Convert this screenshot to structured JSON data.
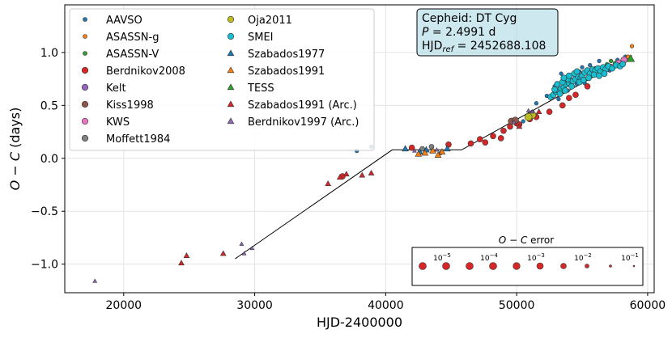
{
  "chart_data": {
    "type": "scatter",
    "title": "",
    "xlabel": "HJD-2400000",
    "ylabel_parts": {
      "o": "O",
      "minus": " − ",
      "c": "C",
      "units": " (days)"
    },
    "xlim": [
      15500,
      60500
    ],
    "ylim": [
      -1.27,
      1.45
    ],
    "xticks": [
      20000,
      30000,
      40000,
      50000,
      60000
    ],
    "xtick_labels": [
      "20000",
      "30000",
      "40000",
      "50000",
      "60000"
    ],
    "yticks": [
      -1.0,
      -0.5,
      0.0,
      0.5,
      1.0
    ],
    "ytick_labels": [
      "−1.0",
      "−0.5",
      "0.0",
      "0.5",
      "1.0"
    ],
    "grid": true,
    "info_box": {
      "line1": "Cepheid: DT Cyg",
      "line2_var": "P",
      "line2_rest": " = 2.4991 d",
      "line3_prefix": "HJD",
      "line3_sub": "ref",
      "line3_rest": " = 2452688.108"
    },
    "fit_line": [
      [
        28500,
        -0.95
      ],
      [
        40500,
        0.08
      ],
      [
        45800,
        0.08
      ],
      [
        58800,
        0.97
      ]
    ],
    "series": [
      {
        "name": "AAVSO",
        "color": "#1f77b4",
        "marker": "circle",
        "r": 2.3,
        "points": [
          [
            37800,
            0.07
          ],
          [
            38900,
            0.11
          ],
          [
            44200,
            0.05
          ],
          [
            50500,
            0.35
          ],
          [
            51200,
            0.44
          ],
          [
            51500,
            0.52
          ],
          [
            52300,
            0.59
          ],
          [
            53200,
            0.56
          ],
          [
            53600,
            0.72
          ],
          [
            54000,
            0.75
          ],
          [
            54400,
            0.79
          ],
          [
            54800,
            0.82
          ],
          [
            55200,
            0.71
          ],
          [
            55600,
            0.88
          ],
          [
            55900,
            0.79
          ],
          [
            56300,
            0.92
          ],
          [
            56800,
            0.87
          ],
          [
            57100,
            0.83
          ],
          [
            57400,
            0.86
          ],
          [
            57700,
            0.93
          ],
          [
            58000,
            0.91
          ],
          [
            58300,
            0.96
          ],
          [
            53900,
            0.64
          ],
          [
            54600,
            0.7
          ],
          [
            55000,
            0.86
          ],
          [
            56000,
            0.85
          ],
          [
            52900,
            0.68
          ],
          [
            53400,
            0.8
          ]
        ]
      },
      {
        "name": "ASASSN-g",
        "color": "#ff7f0e",
        "marker": "circle",
        "r": 2.3,
        "points": [
          [
            58200,
            0.93
          ],
          [
            58500,
            0.96
          ],
          [
            58800,
            1.06
          ]
        ]
      },
      {
        "name": "ASASSN-V",
        "color": "#2ca02c",
        "marker": "circle",
        "r": 2.3,
        "points": [
          [
            56900,
            0.89
          ],
          [
            57200,
            0.92
          ],
          [
            57500,
            0.9
          ]
        ]
      },
      {
        "name": "Berdnikov2008",
        "color": "#d62728",
        "marker": "circle",
        "r": 3.5,
        "points": [
          [
            36700,
            -0.17
          ],
          [
            42000,
            0.1
          ],
          [
            44800,
            0.13
          ],
          [
            46500,
            0.14
          ],
          [
            47200,
            0.18
          ],
          [
            47600,
            0.15
          ],
          [
            48200,
            0.21
          ],
          [
            49000,
            0.26
          ],
          [
            49500,
            0.3
          ],
          [
            48800,
            0.19
          ],
          [
            50000,
            0.33
          ],
          [
            50200,
            0.32
          ],
          [
            51000,
            0.37
          ],
          [
            51500,
            0.39
          ],
          [
            52500,
            0.44
          ],
          [
            53500,
            0.5
          ],
          [
            54000,
            0.57
          ],
          [
            54500,
            0.6
          ],
          [
            55400,
            0.68
          ]
        ]
      },
      {
        "name": "Kelt",
        "color": "#9467bd",
        "marker": "circle",
        "r": 3.5,
        "points": [
          [
            54900,
            0.79
          ]
        ]
      },
      {
        "name": "Kiss1998",
        "color": "#8c564b",
        "marker": "circle",
        "r": 4,
        "points": [
          [
            49600,
            0.35
          ],
          [
            49900,
            0.36
          ]
        ]
      },
      {
        "name": "KWS",
        "color": "#e377c2",
        "marker": "circle",
        "r": 4,
        "points": [
          [
            53700,
            0.73
          ],
          [
            56500,
            0.81
          ],
          [
            57200,
            0.86
          ],
          [
            57800,
            0.9
          ],
          [
            58200,
            0.93
          ]
        ]
      },
      {
        "name": "Moffett1984",
        "color": "#7f7f7f",
        "marker": "circle",
        "r": 3,
        "points": [
          [
            42800,
            0.09
          ],
          [
            43500,
            0.11
          ]
        ]
      },
      {
        "name": "Oja2011",
        "color": "#bcbd22",
        "marker": "circle",
        "r": 4.5,
        "points": [
          [
            51200,
            0.41
          ],
          [
            50900,
            0.39
          ]
        ]
      },
      {
        "name": "SMEI",
        "color": "#17becf",
        "marker": "circle",
        "r": 3.6,
        "points": [
          [
            52600,
            0.58
          ],
          [
            52800,
            0.6
          ],
          [
            53000,
            0.63
          ],
          [
            53200,
            0.64
          ],
          [
            53400,
            0.66
          ],
          [
            53600,
            0.67
          ],
          [
            53800,
            0.7
          ],
          [
            54000,
            0.71
          ],
          [
            54100,
            0.74
          ],
          [
            54300,
            0.73
          ],
          [
            54500,
            0.75
          ],
          [
            54700,
            0.77
          ],
          [
            54900,
            0.76
          ],
          [
            53100,
            0.7
          ],
          [
            53500,
            0.72
          ],
          [
            53900,
            0.75
          ],
          [
            54200,
            0.68
          ],
          [
            54400,
            0.8
          ],
          [
            54600,
            0.82
          ],
          [
            54800,
            0.72
          ],
          [
            53300,
            0.61
          ],
          [
            53700,
            0.64
          ],
          [
            52900,
            0.65
          ],
          [
            54000,
            0.78
          ],
          [
            53600,
            0.76
          ],
          [
            55000,
            0.78
          ],
          [
            55200,
            0.81
          ],
          [
            55400,
            0.83
          ],
          [
            55600,
            0.8
          ],
          [
            55800,
            0.84
          ],
          [
            56000,
            0.83
          ],
          [
            56200,
            0.85
          ],
          [
            56400,
            0.82
          ],
          [
            56600,
            0.86
          ],
          [
            56800,
            0.84
          ],
          [
            57000,
            0.87
          ],
          [
            57300,
            0.85
          ],
          [
            57600,
            0.88
          ],
          [
            57900,
            0.87
          ],
          [
            58100,
            0.89
          ],
          [
            55100,
            0.74
          ],
          [
            55500,
            0.76
          ],
          [
            55900,
            0.79
          ],
          [
            56300,
            0.78
          ],
          [
            56700,
            0.8
          ]
        ]
      },
      {
        "name": "Szabados1977",
        "color": "#1f77b4",
        "marker": "triangle",
        "r": 4,
        "points": [
          [
            41500,
            0.09
          ],
          [
            42600,
            0.06
          ],
          [
            43100,
            0.08
          ],
          [
            44700,
            0.09
          ]
        ]
      },
      {
        "name": "Szabados1991",
        "color": "#ff7f0e",
        "marker": "triangle",
        "r": 4,
        "points": [
          [
            42500,
            0.04
          ],
          [
            43000,
            0.05
          ],
          [
            43600,
            0.07
          ],
          [
            44000,
            0.03
          ],
          [
            44300,
            0.06
          ]
        ]
      },
      {
        "name": "TESS",
        "color": "#2ca02c",
        "marker": "triangle",
        "r": 5,
        "points": [
          [
            58700,
            0.94
          ]
        ]
      },
      {
        "name": "Szabados1991 (Arc.)",
        "color": "#d62728",
        "marker": "triangle",
        "r": 3.5,
        "points": [
          [
            24400,
            -0.99
          ],
          [
            24800,
            -0.92
          ],
          [
            27600,
            -0.9
          ],
          [
            35600,
            -0.24
          ],
          [
            36500,
            -0.18
          ],
          [
            37000,
            -0.15
          ],
          [
            38200,
            -0.16
          ],
          [
            38900,
            -0.14
          ],
          [
            50200,
            0.3
          ],
          [
            51700,
            0.44
          ]
        ]
      },
      {
        "name": "Berdnikov1997 (Arc.)",
        "color": "#9467bd",
        "marker": "triangle",
        "r": 2.5,
        "points": [
          [
            17800,
            -1.16
          ],
          [
            29000,
            -0.81
          ],
          [
            29200,
            -0.9
          ],
          [
            29800,
            -0.85
          ],
          [
            43900,
            0.08
          ],
          [
            42200,
            0.07
          ],
          [
            49800,
            0.34
          ],
          [
            50900,
            0.45
          ],
          [
            51200,
            0.44
          ]
        ]
      }
    ],
    "legend": {
      "col1": [
        "AAVSO",
        "ASASSN-g",
        "ASASSN-V",
        "Berdnikov2008",
        "Kelt",
        "Kiss1998",
        "KWS",
        "Moffett1984"
      ],
      "col2": [
        "Oja2011",
        "SMEI",
        "Szabados1977",
        "Szabados1991",
        "TESS",
        "Szabados1991 (Arc.)",
        "Berdnikov1997 (Arc.)"
      ],
      "placement": "top-left"
    },
    "error_legend": {
      "title_parts": {
        "o": "O",
        "minus": " − ",
        "c": "C",
        "rest": " error"
      },
      "tick_labels": [
        {
          "base": "10",
          "exp": "−5"
        },
        {
          "base": "10",
          "exp": "−4"
        },
        {
          "base": "10",
          "exp": "−3"
        },
        {
          "base": "10",
          "exp": "−2"
        },
        {
          "base": "10",
          "exp": "−1"
        }
      ],
      "dot_color": "#d62728",
      "dot_sizes": [
        4.5,
        4.5,
        4.5,
        4.5,
        4.3,
        4,
        3.5,
        2.5,
        1.5,
        1
      ]
    }
  }
}
